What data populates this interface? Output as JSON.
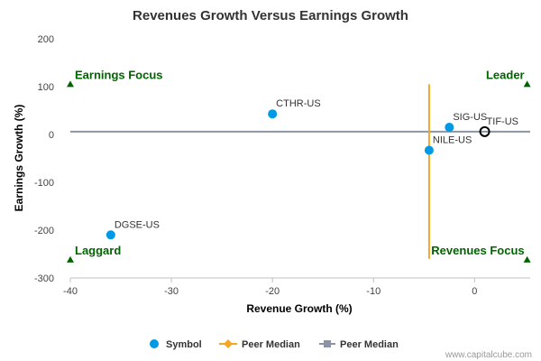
{
  "chart_data": {
    "type": "scatter",
    "title": "Revenues Growth Versus Earnings Growth",
    "xlabel": "Revenue Growth (%)",
    "ylabel": "Earnings Growth (%)",
    "xlim": [
      -40,
      5.5
    ],
    "ylim": [
      -300,
      200
    ],
    "xticks": [
      -40,
      -30,
      -20,
      -10,
      0
    ],
    "yticks": [
      -300,
      -200,
      -100,
      0,
      100,
      200
    ],
    "grid": false,
    "points": [
      {
        "label": "CTHR-US",
        "x": -20,
        "y": 43
      },
      {
        "label": "DGSE-US",
        "x": -36,
        "y": -210
      },
      {
        "label": "SIG-US",
        "x": -2.5,
        "y": 15
      },
      {
        "label": "NILE-US",
        "x": -4.5,
        "y": -33
      }
    ],
    "highlight_point": {
      "label": "TIF-US",
      "x": 1,
      "y": 6
    },
    "peer_median_x": -4.5,
    "peer_median_x_range": [
      -260,
      105
    ],
    "peer_median_y": 6,
    "quadrants": [
      {
        "label": "Earnings Focus",
        "position": "top-left",
        "marker_x": -40,
        "marker_y": 105
      },
      {
        "label": "Leader",
        "position": "top-right",
        "marker_x": 5.2,
        "marker_y": 105
      },
      {
        "label": "Laggard",
        "position": "bottom-left",
        "marker_x": -40,
        "marker_y": -262
      },
      {
        "label": "Revenues Focus",
        "position": "bottom-right",
        "marker_x": 5.2,
        "marker_y": -262
      }
    ],
    "legend": [
      {
        "name": "Symbol",
        "kind": "dot"
      },
      {
        "name": "Peer Median",
        "kind": "vline"
      },
      {
        "name": "Peer Median",
        "kind": "hline"
      }
    ],
    "legend_position": "bottom-center",
    "colors": {
      "symbol": "#0099e6",
      "peer_median_x": "#f5a623",
      "peer_median_y": "#8a94a6",
      "quadrant": "#006400",
      "axis": "#c0c0c0"
    }
  },
  "credit": "www.capitalcube.com"
}
